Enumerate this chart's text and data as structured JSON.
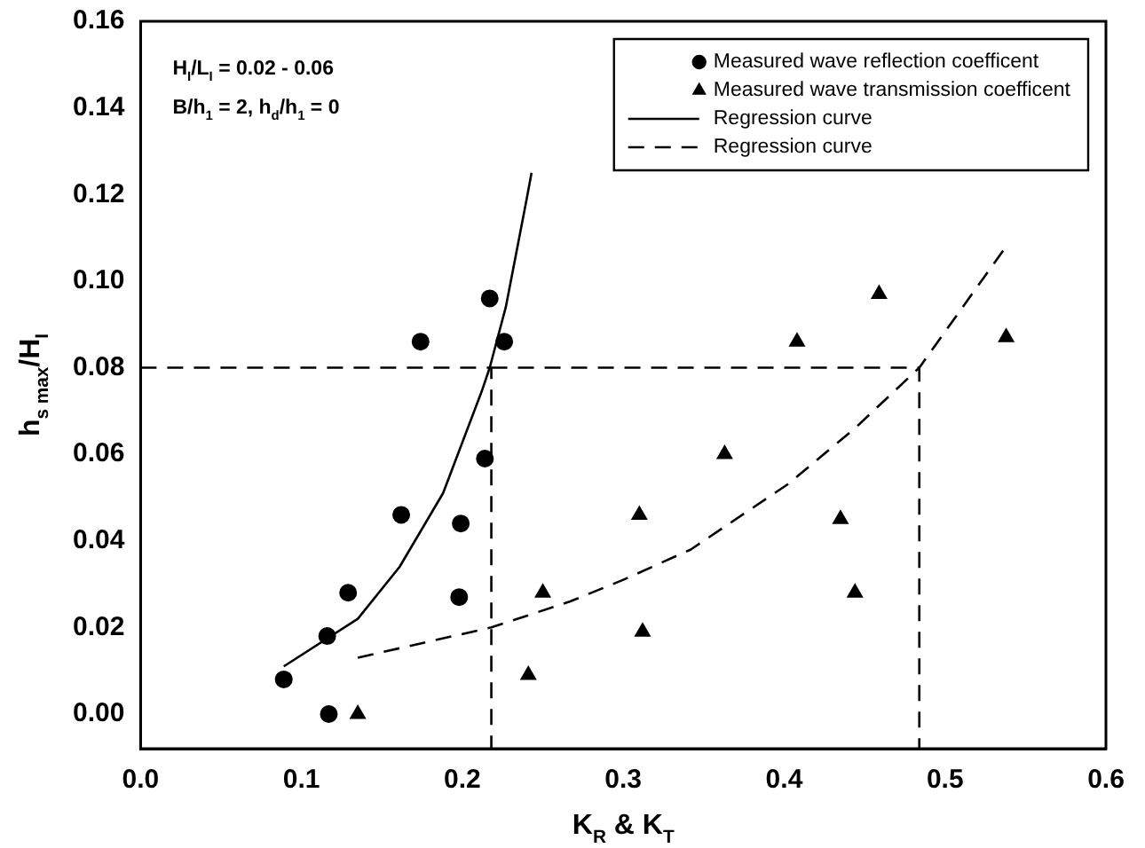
{
  "chart_data": {
    "type": "scatter",
    "xlabel": "K$_{R}$ & K$_{T}$",
    "ylabel": "h$_{s max}$/H$_{I}$",
    "annotations": [
      "H$_{I}$/L$_{I}$ = 0.02 - 0.06",
      "B/h$_{1}$ = 2, h$_{d}$/h$_{1}$ = 0"
    ],
    "xlim": [
      0,
      0.6
    ],
    "ylim": [
      -0.008,
      0.16
    ],
    "xticks": [
      {
        "value": 0,
        "label": "0.0"
      },
      {
        "value": 0.1,
        "label": "0.1"
      },
      {
        "value": 0.2,
        "label": "0.2"
      },
      {
        "value": 0.3,
        "label": "0.3"
      },
      {
        "value": 0.4,
        "label": "0.4"
      },
      {
        "value": 0.5,
        "label": "0.5"
      },
      {
        "value": 0.6,
        "label": "0.6"
      }
    ],
    "yticks": [
      {
        "value": 0,
        "label": "0.00"
      },
      {
        "value": 0.02,
        "label": "0.02"
      },
      {
        "value": 0.04,
        "label": "0.04"
      },
      {
        "value": 0.06,
        "label": "0.06"
      },
      {
        "value": 0.08,
        "label": "0.08"
      },
      {
        "value": 0.1,
        "label": "0.10"
      },
      {
        "value": 0.12,
        "label": "0.12"
      },
      {
        "value": 0.14,
        "label": "0.14"
      },
      {
        "value": 0.16,
        "label": "0.16"
      }
    ],
    "grid": false,
    "legend": "top right",
    "series": [
      {
        "name": "Measured wave reflection coefficent",
        "marker": "circle",
        "color": "#000000",
        "x": [
          0.089,
          0.117,
          0.116,
          0.129,
          0.162,
          0.199,
          0.198,
          0.214,
          0.174,
          0.217,
          0.226
        ],
        "values": [
          0.008,
          0.0,
          0.018,
          0.028,
          0.046,
          0.044,
          0.027,
          0.059,
          0.086,
          0.096,
          0.086
        ]
      },
      {
        "name": "Measured wave transmission coefficent",
        "marker": "triangle",
        "color": "#000000",
        "x": [
          0.135,
          0.241,
          0.25,
          0.31,
          0.312,
          0.363,
          0.408,
          0.459,
          0.435,
          0.444,
          0.538
        ],
        "values": [
          0.0,
          0.009,
          0.028,
          0.046,
          0.019,
          0.06,
          0.086,
          0.097,
          0.045,
          0.028,
          0.087
        ]
      },
      {
        "name": "Regression curve",
        "type": "line",
        "line_style": "solid",
        "marker": "none",
        "color": "#000000",
        "x": [
          0.089,
          0.135,
          0.161,
          0.188,
          0.212,
          0.217,
          0.227,
          0.24,
          0.243
        ],
        "values": [
          0.011,
          0.022,
          0.034,
          0.051,
          0.0745,
          0.08,
          0.094,
          0.119,
          0.125
        ]
      },
      {
        "name": "Regression curve",
        "type": "line",
        "line_style": "dashed",
        "marker": "none",
        "color": "#000000",
        "x": [
          0.135,
          0.218,
          0.267,
          0.3,
          0.342,
          0.402,
          0.444,
          0.484,
          0.537
        ],
        "values": [
          0.013,
          0.02,
          0.026,
          0.031,
          0.038,
          0.053,
          0.066,
          0.08,
          0.1075
        ]
      },
      {
        "type": "line",
        "line_style": "dashed",
        "marker": "none",
        "color": "#000000",
        "x": [
          0,
          0.218,
          0.218
        ],
        "values": [
          0.08,
          0.08,
          -0.008
        ]
      },
      {
        "type": "line",
        "line_style": "dashed",
        "marker": "none",
        "color": "#000000",
        "x": [
          0.218,
          0.484,
          0.484
        ],
        "values": [
          0.08,
          0.08,
          -0.008
        ]
      }
    ]
  }
}
